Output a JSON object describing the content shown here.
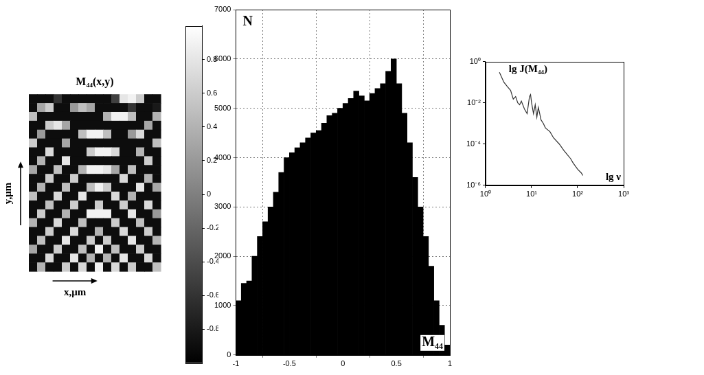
{
  "chart_data": [
    {
      "type": "heatmap",
      "title": "M₄₄(x,y)",
      "x_label": "x,μm",
      "y_label": "y,μm",
      "tick_labels": false,
      "cells": [
        [
          -0.9,
          -0.9,
          -0.9,
          -0.6,
          -0.9,
          -0.9,
          -0.9,
          -0.9,
          -0.9,
          -0.9,
          -0.5,
          0.8,
          0.9,
          0.6,
          -0.9,
          -0.9
        ],
        [
          -0.9,
          0.3,
          0.6,
          -0.9,
          -0.9,
          0.2,
          0.5,
          0.3,
          -0.9,
          -0.9,
          -0.9,
          -0.9,
          -0.6,
          -0.9,
          -0.9,
          -0.8
        ],
        [
          0.5,
          -0.9,
          -0.9,
          -0.9,
          -0.9,
          -0.9,
          -0.9,
          -0.9,
          -0.9,
          0.4,
          0.9,
          0.9,
          0.5,
          -0.9,
          -0.9,
          0.4
        ],
        [
          -0.9,
          -0.9,
          0.6,
          0.8,
          0.3,
          -0.9,
          -0.9,
          -0.9,
          -0.9,
          -0.9,
          -0.9,
          -0.9,
          -0.9,
          -0.9,
          0.3,
          -0.9
        ],
        [
          -0.9,
          0.2,
          -0.9,
          -0.9,
          -0.9,
          -0.9,
          0.5,
          0.9,
          0.9,
          0.5,
          -0.9,
          -0.9,
          0.2,
          0.7,
          -0.9,
          -0.9
        ],
        [
          0.6,
          -0.9,
          -0.9,
          -0.9,
          0.3,
          -0.9,
          -0.9,
          -0.9,
          -0.9,
          -0.9,
          -0.9,
          -0.9,
          -0.9,
          -0.9,
          -0.9,
          0.5
        ],
        [
          -0.9,
          -0.9,
          0.7,
          -0.9,
          -0.9,
          -0.9,
          -0.9,
          0.6,
          0.9,
          0.9,
          0.7,
          -0.9,
          -0.9,
          0.4,
          -0.9,
          -0.9
        ],
        [
          -0.9,
          0.4,
          -0.9,
          -0.9,
          0.8,
          -0.9,
          -0.9,
          -0.9,
          -0.9,
          -0.9,
          -0.9,
          -0.9,
          -0.9,
          -0.9,
          0.6,
          -0.9
        ],
        [
          0.3,
          -0.9,
          -0.9,
          0.5,
          -0.9,
          -0.9,
          0.4,
          0.9,
          0.9,
          0.8,
          0.3,
          -0.9,
          0.5,
          -0.9,
          -0.9,
          -0.9
        ],
        [
          -0.9,
          -0.9,
          0.6,
          -0.9,
          -0.9,
          0.6,
          -0.9,
          -0.9,
          -0.9,
          -0.9,
          -0.9,
          0.7,
          -0.9,
          -0.9,
          0.4,
          -0.9
        ],
        [
          -0.9,
          0.4,
          -0.9,
          -0.9,
          0.5,
          -0.9,
          -0.9,
          0.5,
          0.9,
          0.6,
          -0.9,
          -0.9,
          -0.9,
          0.8,
          -0.9,
          0.3
        ],
        [
          0.5,
          -0.9,
          -0.9,
          0.7,
          -0.9,
          -0.9,
          0.8,
          -0.9,
          -0.9,
          -0.9,
          0.7,
          -0.9,
          0.4,
          -0.9,
          -0.9,
          -0.9
        ],
        [
          -0.9,
          -0.9,
          0.5,
          -0.9,
          -0.9,
          0.6,
          -0.9,
          -0.9,
          0.6,
          -0.9,
          -0.9,
          0.6,
          -0.9,
          -0.9,
          0.7,
          -0.9
        ],
        [
          -0.9,
          0.6,
          -0.9,
          -0.9,
          0.4,
          -0.9,
          -0.9,
          0.9,
          0.9,
          0.9,
          -0.9,
          -0.9,
          0.8,
          -0.9,
          -0.9,
          0.2
        ],
        [
          0.4,
          -0.9,
          -0.9,
          0.7,
          -0.9,
          -0.9,
          0.5,
          -0.9,
          -0.9,
          -0.9,
          0.6,
          -0.9,
          -0.9,
          0.5,
          -0.9,
          -0.9
        ],
        [
          -0.9,
          -0.9,
          0.6,
          -0.9,
          -0.9,
          0.7,
          -0.9,
          -0.9,
          0.4,
          -0.9,
          -0.9,
          0.7,
          -0.9,
          -0.9,
          0.6,
          -0.9
        ],
        [
          -0.9,
          0.5,
          -0.9,
          -0.9,
          0.8,
          -0.9,
          -0.9,
          0.6,
          -0.9,
          0.6,
          -0.9,
          -0.9,
          0.8,
          -0.9,
          -0.9,
          0.4
        ],
        [
          0.3,
          -0.9,
          -0.9,
          0.6,
          -0.9,
          -0.9,
          0.5,
          -0.9,
          0.9,
          -0.9,
          0.5,
          -0.9,
          -0.9,
          0.6,
          -0.9,
          -0.9
        ],
        [
          -0.9,
          -0.9,
          0.7,
          -0.9,
          -0.9,
          0.8,
          -0.9,
          0.4,
          -0.9,
          0.4,
          -0.9,
          0.8,
          -0.9,
          -0.9,
          0.7,
          -0.9
        ],
        [
          -0.9,
          0.4,
          -0.9,
          -0.9,
          0.6,
          -0.9,
          0.7,
          -0.9,
          0.9,
          -0.9,
          0.7,
          -0.9,
          0.6,
          -0.9,
          -0.9,
          0.5
        ]
      ],
      "colorbar": {
        "range": [
          -1,
          1
        ],
        "ticks": [
          -0.8,
          -0.6,
          -0.4,
          -0.2,
          0,
          0.2,
          0.4,
          0.6,
          0.8
        ]
      }
    },
    {
      "type": "histogram",
      "x_label": "M₄₄",
      "y_label": "N",
      "color": "#000000",
      "grid": true,
      "bins": [
        -1,
        -0.95,
        -0.9,
        -0.85,
        -0.8,
        -0.75,
        -0.7,
        -0.65,
        -0.6,
        -0.55,
        -0.5,
        -0.45,
        -0.4,
        -0.35,
        -0.3,
        -0.25,
        -0.2,
        -0.15,
        -0.1,
        -0.05,
        0,
        0.05,
        0.1,
        0.15,
        0.2,
        0.25,
        0.3,
        0.35,
        0.4,
        0.45,
        0.5,
        0.55,
        0.6,
        0.65,
        0.7,
        0.75,
        0.8,
        0.85,
        0.9,
        0.95,
        1
      ],
      "counts": [
        1100,
        1450,
        1500,
        2000,
        2400,
        2700,
        3000,
        3300,
        3700,
        4000,
        4100,
        4200,
        4300,
        4400,
        4500,
        4550,
        4700,
        4850,
        4900,
        5000,
        5100,
        5200,
        5350,
        5250,
        5150,
        5300,
        5400,
        5500,
        5750,
        6000,
        5500,
        4900,
        4300,
        3600,
        3000,
        2400,
        1800,
        1100,
        600,
        200
      ],
      "xlim": [
        -1,
        1
      ],
      "xticks": [
        -1,
        -0.5,
        0,
        0.5,
        1
      ],
      "ylim": [
        0,
        7000
      ],
      "yticks": [
        0,
        1000,
        2000,
        3000,
        4000,
        5000,
        6000,
        7000
      ]
    },
    {
      "type": "line",
      "x_label": "lg ν",
      "y_label": "lg J(M₄₄)",
      "color": "#333333",
      "log": true,
      "grid": false,
      "x": [
        2,
        2.5,
        3,
        3.5,
        4,
        4.5,
        5,
        5.5,
        6,
        7,
        8,
        9,
        9.5,
        10,
        11,
        12,
        13,
        14,
        15,
        16,
        18,
        20,
        25,
        30,
        40,
        50,
        60,
        70,
        80,
        100,
        120,
        130
      ],
      "values": [
        0.3,
        0.1,
        0.06,
        0.04,
        0.015,
        0.02,
        0.01,
        0.008,
        0.012,
        0.005,
        0.003,
        0.02,
        0.025,
        0.01,
        0.003,
        0.008,
        0.002,
        0.006,
        0.003,
        0.0015,
        0.001,
        0.0006,
        0.0004,
        0.0002,
        0.0001,
        5e-05,
        3e-05,
        2e-05,
        1.2e-05,
        6e-06,
        4e-06,
        3e-06
      ],
      "xlim": [
        1,
        1000
      ],
      "xticks": [
        {
          "value": 1,
          "label": "10⁰"
        },
        {
          "value": 10,
          "label": "10¹"
        },
        {
          "value": 100,
          "label": "10²"
        },
        {
          "value": 1000,
          "label": "10³"
        }
      ],
      "ylim": [
        1e-06,
        1
      ],
      "yticks": [
        {
          "value": 1e-06,
          "label": "10⁻⁶"
        },
        {
          "value": 0.0001,
          "label": "10⁻⁴"
        },
        {
          "value": 0.01,
          "label": "10⁻²"
        },
        {
          "value": 1,
          "label": "10⁰"
        }
      ]
    }
  ]
}
